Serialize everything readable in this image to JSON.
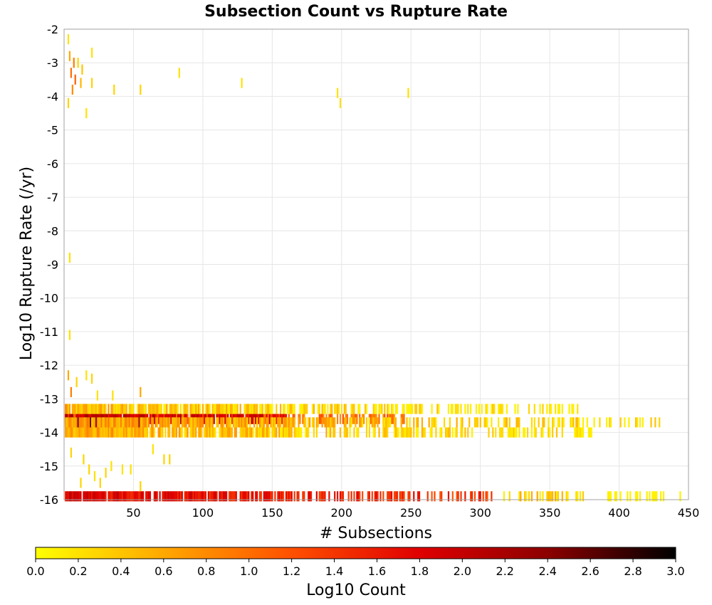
{
  "chart_data": {
    "type": "heatmap",
    "title": "Subsection Count vs Rupture Rate",
    "xlabel": "# Subsections",
    "ylabel": "Log10 Rupture Rate (/yr)",
    "xlim": [
      0,
      450
    ],
    "ylim": [
      -16,
      -2
    ],
    "x_ticks": [
      50,
      100,
      150,
      200,
      250,
      300,
      350,
      400,
      450
    ],
    "y_ticks": [
      -2,
      -3,
      -4,
      -5,
      -6,
      -7,
      -8,
      -9,
      -10,
      -11,
      -12,
      -13,
      -14,
      -15,
      -16
    ],
    "grid": true,
    "colorbar": {
      "label": "Log10 Count",
      "range": [
        0,
        3
      ],
      "ticks": [
        "0.0",
        "0.2",
        "0.4",
        "0.6",
        "0.8",
        "1.0",
        "1.2",
        "1.4",
        "1.6",
        "1.8",
        "2.0",
        "2.2",
        "2.4",
        "2.6",
        "2.8",
        "3.0"
      ],
      "colormap": [
        "#ffff00",
        "#ffa800",
        "#ff5000",
        "#e00000",
        "#8c0000",
        "#000000"
      ]
    },
    "cells_description": "Columns of bins (x = # subsections, y = log10 rupture rate), value = log10 count",
    "strips": [
      {
        "x": [
          1,
          245
        ],
        "y": -13.6,
        "value": 1.3
      },
      {
        "x": [
          1,
          160
        ],
        "y": -13.6,
        "value": 2.0
      },
      {
        "x": [
          1,
          60
        ],
        "y": -13.7,
        "value": 2.6
      },
      {
        "x": [
          1,
          380
        ],
        "y": -13.3,
        "value": 0.5
      },
      {
        "x": [
          1,
          380
        ],
        "y": -14.0,
        "value": 0.6
      },
      {
        "x": [
          1,
          430
        ],
        "y": -13.7,
        "value": 0.7
      },
      {
        "x": [
          1,
          310
        ],
        "y": -15.9,
        "value": 1.8
      },
      {
        "x": [
          310,
          380
        ],
        "y": -15.9,
        "value": 0.8
      },
      {
        "x": [
          390,
          445
        ],
        "y": -15.9,
        "value": 0.2
      }
    ],
    "scattered_bins": [
      {
        "x": 3,
        "y": -2.3,
        "value": 0.2
      },
      {
        "x": 4,
        "y": -2.8,
        "value": 0.6
      },
      {
        "x": 5,
        "y": -3.3,
        "value": 1.0
      },
      {
        "x": 6,
        "y": -3.8,
        "value": 0.8
      },
      {
        "x": 3,
        "y": -4.2,
        "value": 0.3
      },
      {
        "x": 7,
        "y": -3.0,
        "value": 0.9
      },
      {
        "x": 8,
        "y": -3.5,
        "value": 1.1
      },
      {
        "x": 10,
        "y": -3.0,
        "value": 0.3
      },
      {
        "x": 12,
        "y": -3.6,
        "value": 0.5
      },
      {
        "x": 13,
        "y": -3.2,
        "value": 0.4
      },
      {
        "x": 16,
        "y": -4.5,
        "value": 0.2
      },
      {
        "x": 20,
        "y": -2.7,
        "value": 0.2
      },
      {
        "x": 20,
        "y": -3.6,
        "value": 0.3
      },
      {
        "x": 36,
        "y": -3.8,
        "value": 0.3
      },
      {
        "x": 55,
        "y": -3.8,
        "value": 0.3
      },
      {
        "x": 83,
        "y": -3.3,
        "value": 0.2
      },
      {
        "x": 128,
        "y": -3.6,
        "value": 0.2
      },
      {
        "x": 197,
        "y": -3.9,
        "value": 0.2
      },
      {
        "x": 199,
        "y": -4.2,
        "value": 0.2
      },
      {
        "x": 248,
        "y": -3.9,
        "value": 0.2
      },
      {
        "x": 4,
        "y": -8.8,
        "value": 0.2
      },
      {
        "x": 4,
        "y": -11.1,
        "value": 0.2
      },
      {
        "x": 3,
        "y": -12.3,
        "value": 0.6
      },
      {
        "x": 5,
        "y": -12.8,
        "value": 0.9
      },
      {
        "x": 9,
        "y": -12.5,
        "value": 0.3
      },
      {
        "x": 16,
        "y": -12.3,
        "value": 0.2
      },
      {
        "x": 20,
        "y": -12.4,
        "value": 0.3
      },
      {
        "x": 24,
        "y": -12.9,
        "value": 0.2
      },
      {
        "x": 35,
        "y": -12.9,
        "value": 0.2
      },
      {
        "x": 55,
        "y": -12.8,
        "value": 0.6
      },
      {
        "x": 5,
        "y": -14.6,
        "value": 0.3
      },
      {
        "x": 14,
        "y": -14.8,
        "value": 0.3
      },
      {
        "x": 18,
        "y": -15.1,
        "value": 0.3
      },
      {
        "x": 22,
        "y": -15.3,
        "value": 0.2
      },
      {
        "x": 26,
        "y": -15.5,
        "value": 0.3
      },
      {
        "x": 30,
        "y": -15.2,
        "value": 0.3
      },
      {
        "x": 34,
        "y": -15.0,
        "value": 0.2
      },
      {
        "x": 42,
        "y": -15.1,
        "value": 0.2
      },
      {
        "x": 48,
        "y": -15.1,
        "value": 0.2
      },
      {
        "x": 55,
        "y": -15.6,
        "value": 0.3
      },
      {
        "x": 72,
        "y": -14.8,
        "value": 0.3
      },
      {
        "x": 76,
        "y": -14.8,
        "value": 0.3
      },
      {
        "x": 64,
        "y": -14.5,
        "value": 0.2
      },
      {
        "x": 12,
        "y": -15.5,
        "value": 0.3
      }
    ]
  }
}
